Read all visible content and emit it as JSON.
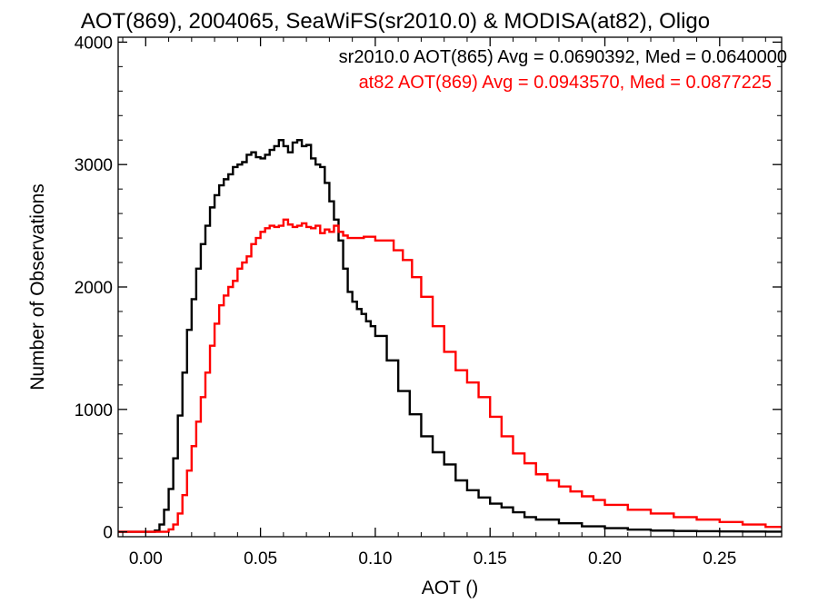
{
  "chart_data": {
    "type": "line",
    "title": "AOT(869), 2004065, SeaWiFS(sr2010.0) & MODISA(at82), Oligo",
    "xlabel": "AOT ()",
    "ylabel": "Number of Observations",
    "xlim": [
      -0.012,
      0.277
    ],
    "ylim": [
      -40,
      4040
    ],
    "xticks": [
      0.0,
      0.05,
      0.1,
      0.15,
      0.2,
      0.25
    ],
    "xtick_labels": [
      "0.00",
      "0.05",
      "0.10",
      "0.15",
      "0.20",
      "0.25"
    ],
    "yticks": [
      0,
      1000,
      2000,
      3000,
      4000
    ],
    "ytick_labels": [
      "0",
      "1000",
      "2000",
      "3000",
      "4000"
    ],
    "grid": false,
    "legend_placement": "top-right",
    "step": "histogram",
    "series": [
      {
        "name": "sr2010.0 AOT(865) Avg = 0.0690392, Med = 0.0640000",
        "color": "#000000",
        "x": [
          -0.012,
          0.0,
          0.002,
          0.004,
          0.006,
          0.008,
          0.01,
          0.012,
          0.014,
          0.016,
          0.018,
          0.02,
          0.022,
          0.024,
          0.026,
          0.028,
          0.03,
          0.032,
          0.034,
          0.036,
          0.038,
          0.04,
          0.042,
          0.044,
          0.046,
          0.048,
          0.05,
          0.052,
          0.054,
          0.056,
          0.058,
          0.06,
          0.062,
          0.064,
          0.066,
          0.068,
          0.07,
          0.072,
          0.074,
          0.076,
          0.078,
          0.08,
          0.082,
          0.084,
          0.086,
          0.088,
          0.09,
          0.092,
          0.094,
          0.096,
          0.098,
          0.1,
          0.105,
          0.11,
          0.115,
          0.12,
          0.125,
          0.13,
          0.135,
          0.14,
          0.145,
          0.15,
          0.155,
          0.16,
          0.165,
          0.17,
          0.18,
          0.19,
          0.2,
          0.21,
          0.22,
          0.23,
          0.24,
          0.25,
          0.26,
          0.27,
          0.277
        ],
        "values": [
          0,
          0,
          0,
          10,
          60,
          180,
          350,
          600,
          950,
          1300,
          1650,
          1900,
          2150,
          2350,
          2500,
          2650,
          2750,
          2830,
          2880,
          2920,
          2980,
          3000,
          3020,
          3080,
          3100,
          3060,
          3050,
          3080,
          3120,
          3150,
          3200,
          3150,
          3100,
          3180,
          3200,
          3150,
          3160,
          3050,
          3000,
          2980,
          2850,
          2700,
          2550,
          2380,
          2150,
          1960,
          1880,
          1820,
          1780,
          1720,
          1680,
          1600,
          1400,
          1150,
          960,
          780,
          650,
          550,
          420,
          340,
          280,
          230,
          200,
          160,
          120,
          100,
          70,
          45,
          30,
          18,
          10,
          7,
          5,
          3,
          2,
          1,
          1
        ]
      },
      {
        "name": "at82 AOT(869) Avg = 0.0943570, Med = 0.0877225",
        "color": "#ff0000",
        "x": [
          -0.012,
          0.0,
          0.005,
          0.01,
          0.012,
          0.014,
          0.016,
          0.018,
          0.02,
          0.022,
          0.024,
          0.026,
          0.028,
          0.03,
          0.032,
          0.034,
          0.036,
          0.038,
          0.04,
          0.042,
          0.044,
          0.046,
          0.048,
          0.05,
          0.052,
          0.054,
          0.056,
          0.058,
          0.06,
          0.062,
          0.064,
          0.066,
          0.068,
          0.07,
          0.072,
          0.074,
          0.076,
          0.078,
          0.08,
          0.082,
          0.084,
          0.086,
          0.088,
          0.09,
          0.095,
          0.1,
          0.105,
          0.108,
          0.112,
          0.116,
          0.12,
          0.125,
          0.13,
          0.135,
          0.14,
          0.145,
          0.15,
          0.155,
          0.16,
          0.165,
          0.17,
          0.175,
          0.18,
          0.185,
          0.19,
          0.195,
          0.2,
          0.21,
          0.22,
          0.23,
          0.24,
          0.25,
          0.26,
          0.27,
          0.277
        ],
        "values": [
          0,
          0,
          0,
          20,
          60,
          150,
          300,
          500,
          700,
          900,
          1100,
          1300,
          1520,
          1700,
          1850,
          1930,
          2000,
          2050,
          2150,
          2200,
          2250,
          2350,
          2400,
          2450,
          2480,
          2500,
          2490,
          2500,
          2550,
          2510,
          2490,
          2500,
          2520,
          2490,
          2480,
          2500,
          2440,
          2470,
          2450,
          2500,
          2450,
          2420,
          2400,
          2400,
          2410,
          2380,
          2380,
          2300,
          2220,
          2080,
          1920,
          1680,
          1470,
          1320,
          1220,
          1100,
          940,
          780,
          640,
          560,
          470,
          420,
          370,
          330,
          290,
          260,
          220,
          180,
          150,
          120,
          100,
          80,
          60,
          40,
          30
        ]
      }
    ]
  }
}
